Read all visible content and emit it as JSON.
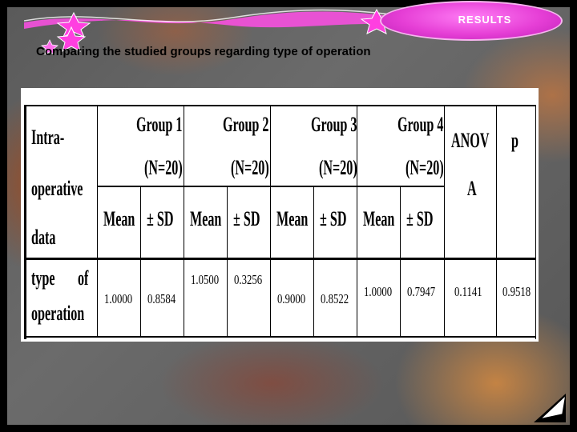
{
  "header": {
    "results_label": "RESULTS",
    "page_title": "Comparing the studied groups regarding type of operation"
  },
  "table": {
    "row_header_lines": [
      "Intra-",
      "operative",
      "data"
    ],
    "groups": [
      {
        "name": "Group 1",
        "n": "(N=20)"
      },
      {
        "name": "Group 2",
        "n": "(N=20)"
      },
      {
        "name": "Group 3",
        "n": "(N=20)"
      },
      {
        "name": "Group 4",
        "n": "(N=20)"
      }
    ],
    "anova_lines": [
      "ANOV",
      "A"
    ],
    "p_label": "p",
    "mean_label": "Mean",
    "sd_label": "± SD",
    "row": {
      "label_lines": [
        "type",
        "of",
        "operation"
      ],
      "g1_mean": "1.0000",
      "g1_sd": "0.8584",
      "g2_mean": "1.0500",
      "g2_sd": "0.3256",
      "g3_mean": "0.9000",
      "g3_sd": "0.8522",
      "g4_mean": "1.0000",
      "g4_sd": "0.7947",
      "anova": "0.1141",
      "p": "0.9518"
    }
  },
  "colors": {
    "badge": "#e63fd6",
    "banner": "#ff4fe6"
  }
}
